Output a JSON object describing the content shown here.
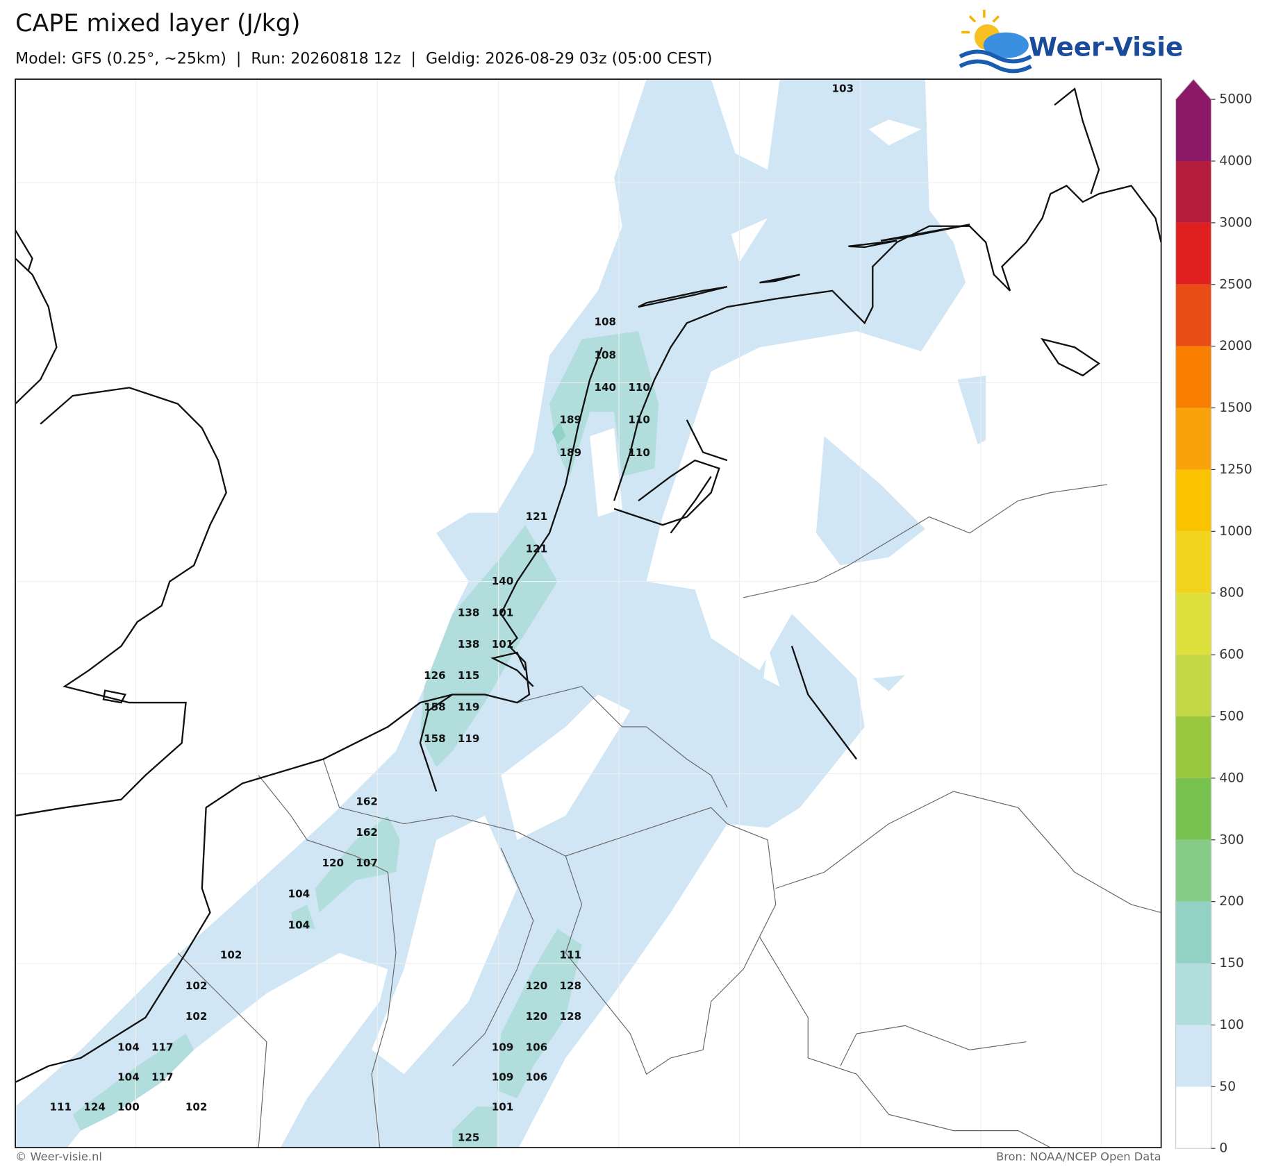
{
  "header": {
    "title": "CAPE mixed layer (J/kg)",
    "subtitle": "Model: GFS (0.25°, ~25km)  |  Run: 20260818 12z  |  Geldig: 2026-08-29 03z (05:00 CEST)",
    "logo": "Weer-Visie"
  },
  "map": {
    "labels": [
      103,
      108,
      108,
      140,
      110,
      189,
      110,
      189,
      110,
      121,
      121,
      140,
      138,
      101,
      138,
      101,
      126,
      115,
      158,
      119,
      158,
      119,
      162,
      162,
      120,
      107,
      104,
      104,
      102,
      111,
      102,
      120,
      128,
      102,
      120,
      128,
      104,
      117,
      109,
      106,
      104,
      117,
      109,
      106,
      111,
      124,
      100,
      102,
      101,
      125
    ]
  },
  "colorbar": {
    "ticks": [
      0,
      50,
      100,
      150,
      200,
      300,
      400,
      500,
      600,
      800,
      1000,
      1250,
      1500,
      2000,
      2500,
      3000,
      4000,
      5000
    ],
    "colors": [
      "#ffffff",
      "#d0e6f5",
      "#b2dddd",
      "#92d2c4",
      "#86cc88",
      "#78c250",
      "#98c83e",
      "#c2d844",
      "#dee03c",
      "#f2d41e",
      "#fac300",
      "#f9a20c",
      "#f87f00",
      "#e94c14",
      "#e0201e",
      "#b51d3c",
      "#8c1868"
    ]
  },
  "footer": {
    "left": "© Weer-visie.nl",
    "right": "Bron: NOAA/NCEP Open Data"
  }
}
